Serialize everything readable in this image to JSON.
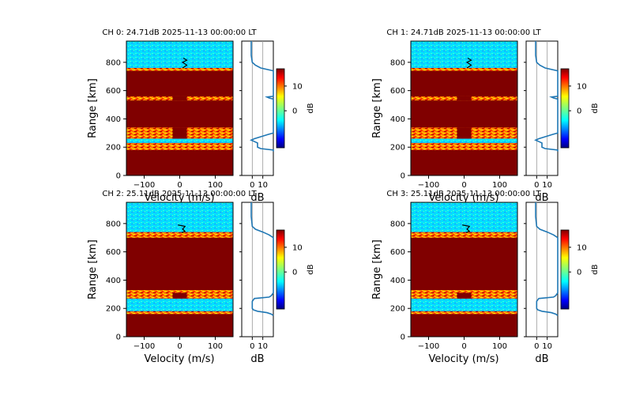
{
  "figure": {
    "colormap": "jet",
    "colors": {
      "profile_line": "#1f77b4",
      "background_band": "#00e5ff",
      "strong_echo": "#800000",
      "zero_line": "#999999"
    }
  },
  "chart_data": [
    {
      "type": "heatmap",
      "title": "CH 0: 24.71dB 2025-11-13 00:00:00 LT",
      "xlabel": "Velocity (m/s)",
      "ylabel": "Range [km]",
      "xlim": [
        -150,
        150
      ],
      "ylim": [
        0,
        950
      ],
      "xticks": [
        "−100",
        "0",
        "100"
      ],
      "yticks": [
        "0",
        "200",
        "400",
        "600",
        "800"
      ],
      "colorbar": {
        "label": "dB",
        "ticks": [
          "0",
          "10"
        ],
        "range": [
          -15,
          17
        ]
      },
      "range_bands_km": [
        {
          "from": 150,
          "to": 180,
          "level": "high"
        },
        {
          "from": 180,
          "to": 230,
          "level": "mixed"
        },
        {
          "from": 230,
          "to": 260,
          "level": "low"
        },
        {
          "from": 260,
          "to": 340,
          "level": "mixed-notched"
        },
        {
          "from": 340,
          "to": 530,
          "level": "high"
        },
        {
          "from": 530,
          "to": 560,
          "level": "mixed-notched"
        },
        {
          "from": 560,
          "to": 740,
          "level": "high"
        },
        {
          "from": 740,
          "to": 760,
          "level": "mixed"
        },
        {
          "from": 760,
          "to": 950,
          "level": "low"
        }
      ],
      "doppler_trace": [
        [
          8,
          760
        ],
        [
          20,
          780
        ],
        [
          8,
          800
        ],
        [
          20,
          815
        ],
        [
          10,
          830
        ]
      ],
      "profile": {
        "xlabel": "dB",
        "xticks": [
          "0",
          "10"
        ],
        "xlim": [
          -10,
          20
        ],
        "range_km": [
          950,
          900,
          850,
          800,
          780,
          760,
          740,
          720,
          700,
          600,
          560,
          555,
          548,
          540,
          530,
          500,
          400,
          300,
          290,
          260,
          250,
          240,
          230,
          200,
          190,
          180,
          170
        ],
        "power_db": [
          -1,
          -1,
          -1,
          0,
          3,
          8,
          20,
          20,
          20,
          20,
          20,
          14,
          16,
          20,
          20,
          20,
          20,
          20,
          15,
          2,
          -1,
          2,
          5,
          5,
          8,
          20,
          20
        ]
      }
    },
    {
      "type": "heatmap",
      "title": "CH 1: 24.71dB 2025-11-13 00:00:00 LT",
      "xlabel": "Velocity (m/s)",
      "ylabel": "Range [km]",
      "xlim": [
        -150,
        150
      ],
      "ylim": [
        0,
        950
      ],
      "xticks": [
        "−100",
        "0",
        "100"
      ],
      "yticks": [
        "0",
        "200",
        "400",
        "600",
        "800"
      ],
      "colorbar": {
        "label": "dB",
        "ticks": [
          "0",
          "10"
        ],
        "range": [
          -15,
          17
        ]
      },
      "range_bands_km": [
        {
          "from": 150,
          "to": 180,
          "level": "high"
        },
        {
          "from": 180,
          "to": 230,
          "level": "mixed"
        },
        {
          "from": 230,
          "to": 260,
          "level": "low"
        },
        {
          "from": 260,
          "to": 340,
          "level": "mixed-notched"
        },
        {
          "from": 340,
          "to": 530,
          "level": "high"
        },
        {
          "from": 530,
          "to": 560,
          "level": "mixed-notched"
        },
        {
          "from": 560,
          "to": 740,
          "level": "high"
        },
        {
          "from": 740,
          "to": 760,
          "level": "mixed"
        },
        {
          "from": 760,
          "to": 950,
          "level": "low"
        }
      ],
      "doppler_trace": [
        [
          8,
          760
        ],
        [
          20,
          780
        ],
        [
          8,
          800
        ],
        [
          20,
          815
        ],
        [
          10,
          830
        ]
      ],
      "profile": {
        "xlabel": "dB",
        "xticks": [
          "0",
          "10"
        ],
        "xlim": [
          -10,
          20
        ],
        "range_km": [
          950,
          900,
          850,
          800,
          780,
          760,
          740,
          720,
          700,
          600,
          560,
          555,
          548,
          540,
          530,
          500,
          400,
          300,
          290,
          260,
          250,
          240,
          230,
          200,
          190,
          180,
          170
        ],
        "power_db": [
          -1,
          -1,
          -1,
          0,
          3,
          8,
          20,
          20,
          20,
          20,
          20,
          14,
          16,
          20,
          20,
          20,
          20,
          20,
          15,
          2,
          -1,
          2,
          5,
          5,
          8,
          20,
          20
        ]
      }
    },
    {
      "type": "heatmap",
      "title": "CH 2: 25.11dB 2025-11-13 00:00:00 LT",
      "xlabel": "Velocity (m/s)",
      "ylabel": "Range [km]",
      "xlim": [
        -150,
        150
      ],
      "ylim": [
        0,
        950
      ],
      "xticks": [
        "−100",
        "0",
        "100"
      ],
      "yticks": [
        "0",
        "200",
        "400",
        "600",
        "800"
      ],
      "colorbar": {
        "label": "dB",
        "ticks": [
          "0",
          "10"
        ],
        "range": [
          -15,
          17
        ]
      },
      "range_bands_km": [
        {
          "from": 150,
          "to": 160,
          "level": "high"
        },
        {
          "from": 160,
          "to": 180,
          "level": "mixed"
        },
        {
          "from": 180,
          "to": 270,
          "level": "low"
        },
        {
          "from": 270,
          "to": 310,
          "level": "mixed-notched"
        },
        {
          "from": 310,
          "to": 330,
          "level": "mixed"
        },
        {
          "from": 330,
          "to": 700,
          "level": "high"
        },
        {
          "from": 700,
          "to": 740,
          "level": "mixed"
        },
        {
          "from": 740,
          "to": 950,
          "level": "low"
        }
      ],
      "doppler_trace": [
        [
          -5,
          790
        ],
        [
          15,
          780
        ],
        [
          8,
          760
        ],
        [
          15,
          745
        ],
        [
          5,
          735
        ]
      ],
      "profile": {
        "xlabel": "dB",
        "xticks": [
          "0",
          "10"
        ],
        "xlim": [
          -10,
          20
        ],
        "range_km": [
          950,
          900,
          850,
          780,
          760,
          740,
          720,
          700,
          600,
          400,
          330,
          310,
          290,
          280,
          270,
          250,
          200,
          190,
          180,
          170,
          160,
          150
        ],
        "power_db": [
          -1,
          -1,
          -1,
          0,
          3,
          10,
          16,
          20,
          20,
          20,
          20,
          20,
          18,
          16,
          2,
          0,
          0,
          1,
          5,
          14,
          18,
          20
        ]
      }
    },
    {
      "type": "heatmap",
      "title": "CH 3: 25.11dB 2025-11-13 00:00:00 LT",
      "xlabel": "Velocity (m/s)",
      "ylabel": "Range [km]",
      "xlim": [
        -150,
        150
      ],
      "ylim": [
        0,
        950
      ],
      "xticks": [
        "−100",
        "0",
        "100"
      ],
      "yticks": [
        "0",
        "200",
        "400",
        "600",
        "800"
      ],
      "colorbar": {
        "label": "dB",
        "ticks": [
          "0",
          "10"
        ],
        "range": [
          -15,
          17
        ]
      },
      "range_bands_km": [
        {
          "from": 150,
          "to": 160,
          "level": "high"
        },
        {
          "from": 160,
          "to": 180,
          "level": "mixed"
        },
        {
          "from": 180,
          "to": 270,
          "level": "low"
        },
        {
          "from": 270,
          "to": 310,
          "level": "mixed-notched"
        },
        {
          "from": 310,
          "to": 330,
          "level": "mixed"
        },
        {
          "from": 330,
          "to": 700,
          "level": "high"
        },
        {
          "from": 700,
          "to": 740,
          "level": "mixed"
        },
        {
          "from": 740,
          "to": 950,
          "level": "low"
        }
      ],
      "doppler_trace": [
        [
          -5,
          790
        ],
        [
          15,
          780
        ],
        [
          8,
          760
        ],
        [
          15,
          745
        ],
        [
          5,
          735
        ]
      ],
      "profile": {
        "xlabel": "dB",
        "xticks": [
          "0",
          "10"
        ],
        "xlim": [
          -10,
          20
        ],
        "range_km": [
          950,
          900,
          850,
          780,
          760,
          740,
          720,
          700,
          600,
          400,
          330,
          310,
          290,
          280,
          270,
          250,
          200,
          190,
          180,
          170,
          160,
          150
        ],
        "power_db": [
          -1,
          -1,
          -1,
          0,
          3,
          10,
          16,
          20,
          20,
          20,
          20,
          20,
          18,
          16,
          2,
          0,
          0,
          1,
          5,
          14,
          18,
          20
        ]
      }
    }
  ]
}
